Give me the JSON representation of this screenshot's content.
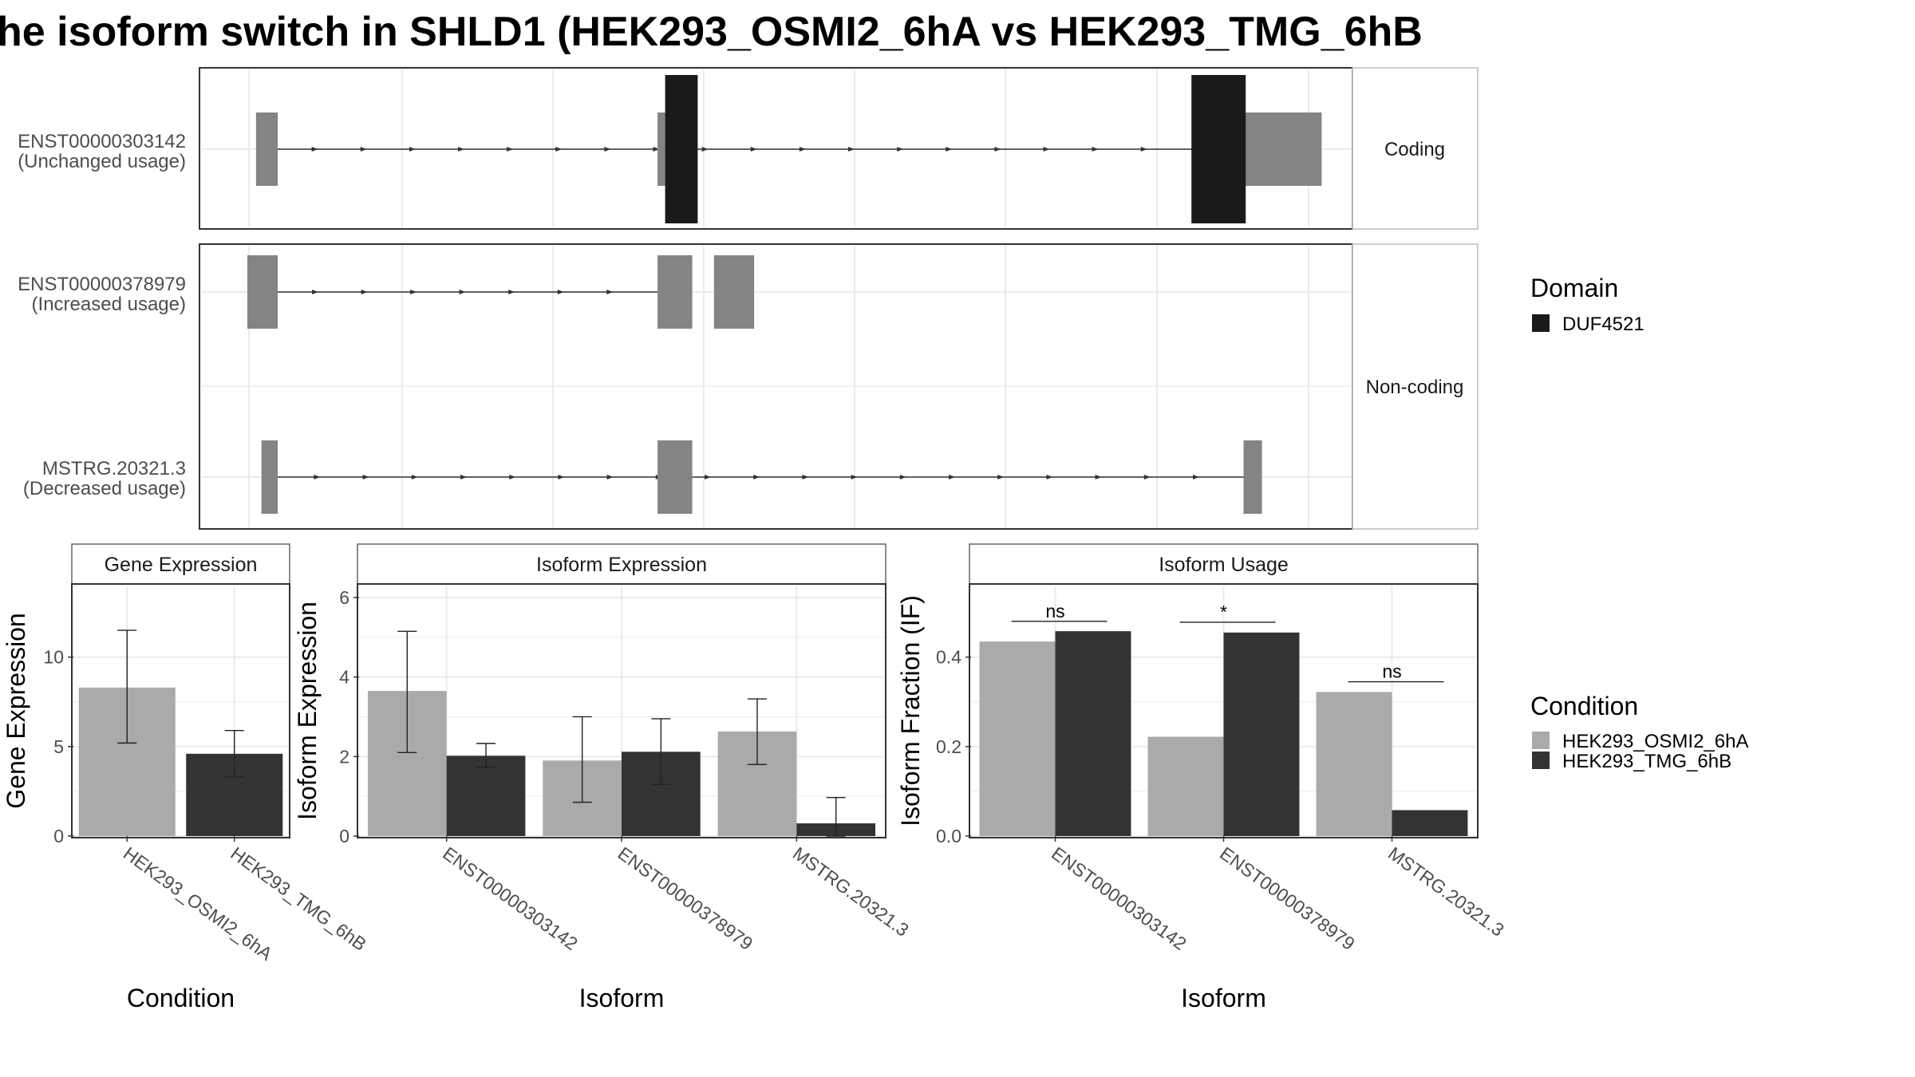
{
  "title": "he isoform switch in SHLD1 (HEK293_OSMI2_6hA vs HEK293_TMG_6hB",
  "colors": {
    "utr": "#848484",
    "domain": "#1a1a1a",
    "cond_a": "#aaaaaa",
    "cond_b": "#333333",
    "grid": "#ebebeb",
    "strip_bg": "#ffffff"
  },
  "structure": {
    "facets": [
      "Coding",
      "Non-coding"
    ],
    "transcripts": [
      {
        "id": "ENST00000303142",
        "note": "(Unchanged usage)",
        "facet": "Coding",
        "utr_exons": [
          [
            8,
            28
          ],
          [
            378,
            385
          ],
          [
            875,
            990
          ]
        ],
        "thin_exons": [],
        "domain_exons": [
          [
            385,
            415
          ],
          [
            870,
            920
          ]
        ],
        "intron_span": [
          18,
          872
        ]
      },
      {
        "id": "ENST00000378979",
        "note": "(Increased usage)",
        "facet": "Non-coding",
        "utr_exons": [
          [
            0,
            28
          ],
          [
            378,
            410
          ],
          [
            430,
            467
          ]
        ],
        "thin_exons": [],
        "domain_exons": [],
        "intron_span": [
          18,
          380
        ]
      },
      {
        "id": "MSTRG.20321.3",
        "note": "(Decreased usage)",
        "facet": "Non-coding",
        "utr_exons": [
          [
            13,
            28
          ],
          [
            378,
            410
          ],
          [
            918,
            935
          ]
        ],
        "thin_exons": [],
        "domain_exons": [],
        "intron_span": [
          20,
          920
        ]
      }
    ],
    "legend_title": "Domain",
    "legend_items": [
      "DUF4521"
    ]
  },
  "chart_data": [
    {
      "type": "bar",
      "title": "Gene Expression",
      "xlabel": "Condition",
      "ylabel": "Gene Expression",
      "categories": [
        "HEK293_OSMI2_6hA",
        "HEK293_TMG_6hB"
      ],
      "values": [
        8.3,
        4.6
      ],
      "errors_low": [
        5.2,
        3.3
      ],
      "errors_high": [
        11.5,
        5.9
      ],
      "ylim": [
        0,
        14
      ],
      "yticks": [
        0,
        5,
        10
      ],
      "tick_labels": [
        "0",
        "5",
        "10"
      ]
    },
    {
      "type": "bar",
      "title": "Isoform Expression",
      "xlabel": "Isoform",
      "ylabel": "Isoform Expression",
      "categories": [
        "ENST00000303142",
        "ENST00000378979",
        "MSTRG.20321.3"
      ],
      "series": [
        {
          "name": "HEK293_OSMI2_6hA",
          "values": [
            3.65,
            1.9,
            2.63
          ],
          "low": [
            2.1,
            0.85,
            1.8
          ],
          "high": [
            5.15,
            3.0,
            3.45
          ]
        },
        {
          "name": "HEK293_TMG_6hB",
          "values": [
            2.02,
            2.12,
            0.32
          ],
          "low": [
            1.73,
            1.3,
            0.0
          ],
          "high": [
            2.33,
            2.95,
            0.97
          ]
        }
      ],
      "ylim": [
        0,
        6.3
      ],
      "yticks": [
        0,
        2,
        4,
        6
      ],
      "tick_labels": [
        "0",
        "2",
        "4",
        "6"
      ]
    },
    {
      "type": "bar",
      "title": "Isoform Usage",
      "xlabel": "Isoform",
      "ylabel": "Isoform Fraction (IF)",
      "categories": [
        "ENST00000303142",
        "ENST00000378979",
        "MSTRG.20321.3"
      ],
      "series": [
        {
          "name": "HEK293_OSMI2_6hA",
          "values": [
            0.435,
            0.222,
            0.322
          ]
        },
        {
          "name": "HEK293_TMG_6hB",
          "values": [
            0.458,
            0.455,
            0.058
          ]
        }
      ],
      "significance": [
        "ns",
        "*",
        "ns"
      ],
      "sig_y": [
        0.48,
        0.478,
        0.345
      ],
      "ylim": [
        0,
        0.56
      ],
      "yticks": [
        0,
        0.2,
        0.4
      ],
      "tick_labels": [
        "0.0",
        "0.2",
        "0.4"
      ]
    }
  ],
  "condition_legend": {
    "title": "Condition",
    "items": [
      "HEK293_OSMI2_6hA",
      "HEK293_TMG_6hB"
    ]
  }
}
